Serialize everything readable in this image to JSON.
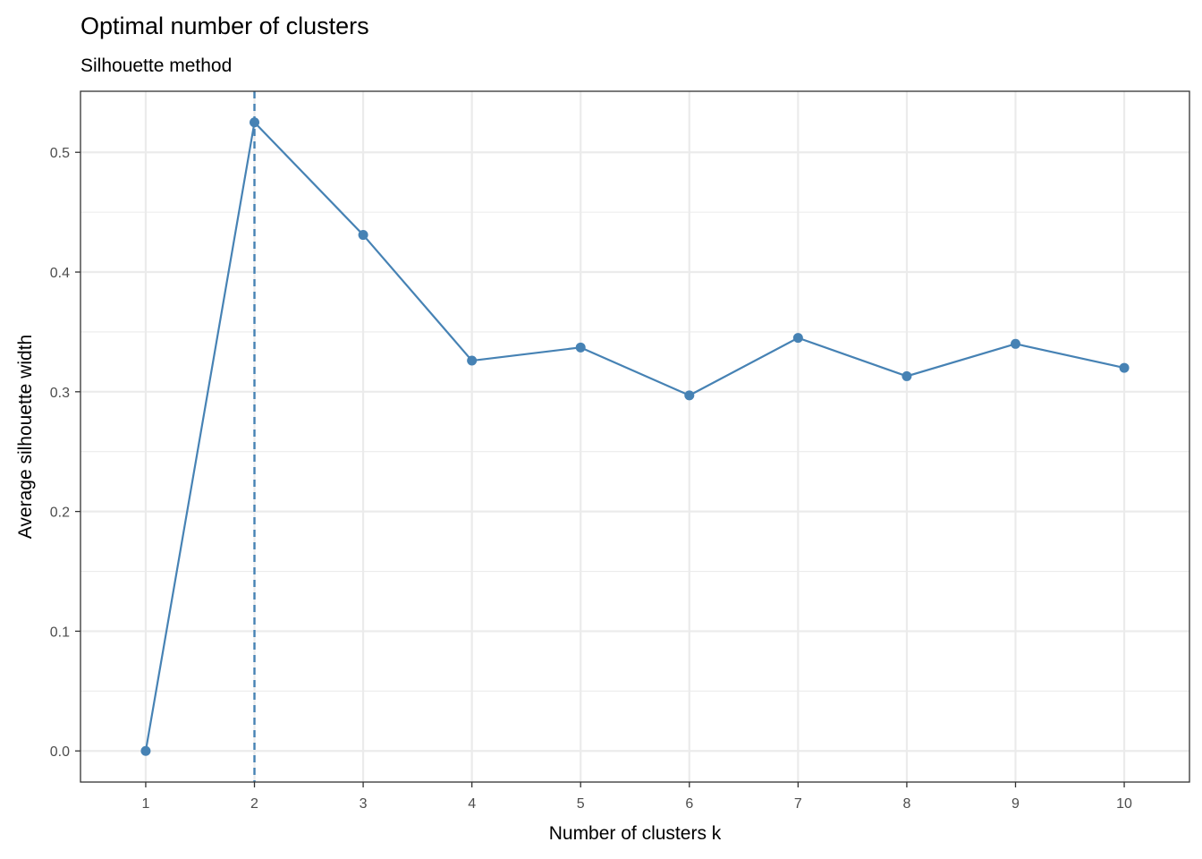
{
  "chart_data": {
    "type": "line",
    "title": "Optimal number of clusters",
    "subtitle": "Silhouette method",
    "xlabel": "Number of clusters k",
    "ylabel": "Average silhouette width",
    "categories": [
      "1",
      "2",
      "3",
      "4",
      "5",
      "6",
      "7",
      "8",
      "9",
      "10"
    ],
    "series": [
      {
        "values": [
          0.0,
          0.525,
          0.431,
          0.326,
          0.337,
          0.297,
          0.345,
          0.313,
          0.34,
          0.32
        ]
      }
    ],
    "optimal_k": "2",
    "ylim": [
      -0.026,
      0.551
    ],
    "yticks": [
      "0.0",
      "0.1",
      "0.2",
      "0.3",
      "0.4",
      "0.5"
    ],
    "ytick_values": [
      0.0,
      0.1,
      0.2,
      0.3,
      0.4,
      0.5
    ],
    "grid": true,
    "legend": "none",
    "colors": {
      "line": "#4682B4",
      "grid": "#EBEBEB",
      "panel_border": "#333333"
    }
  }
}
